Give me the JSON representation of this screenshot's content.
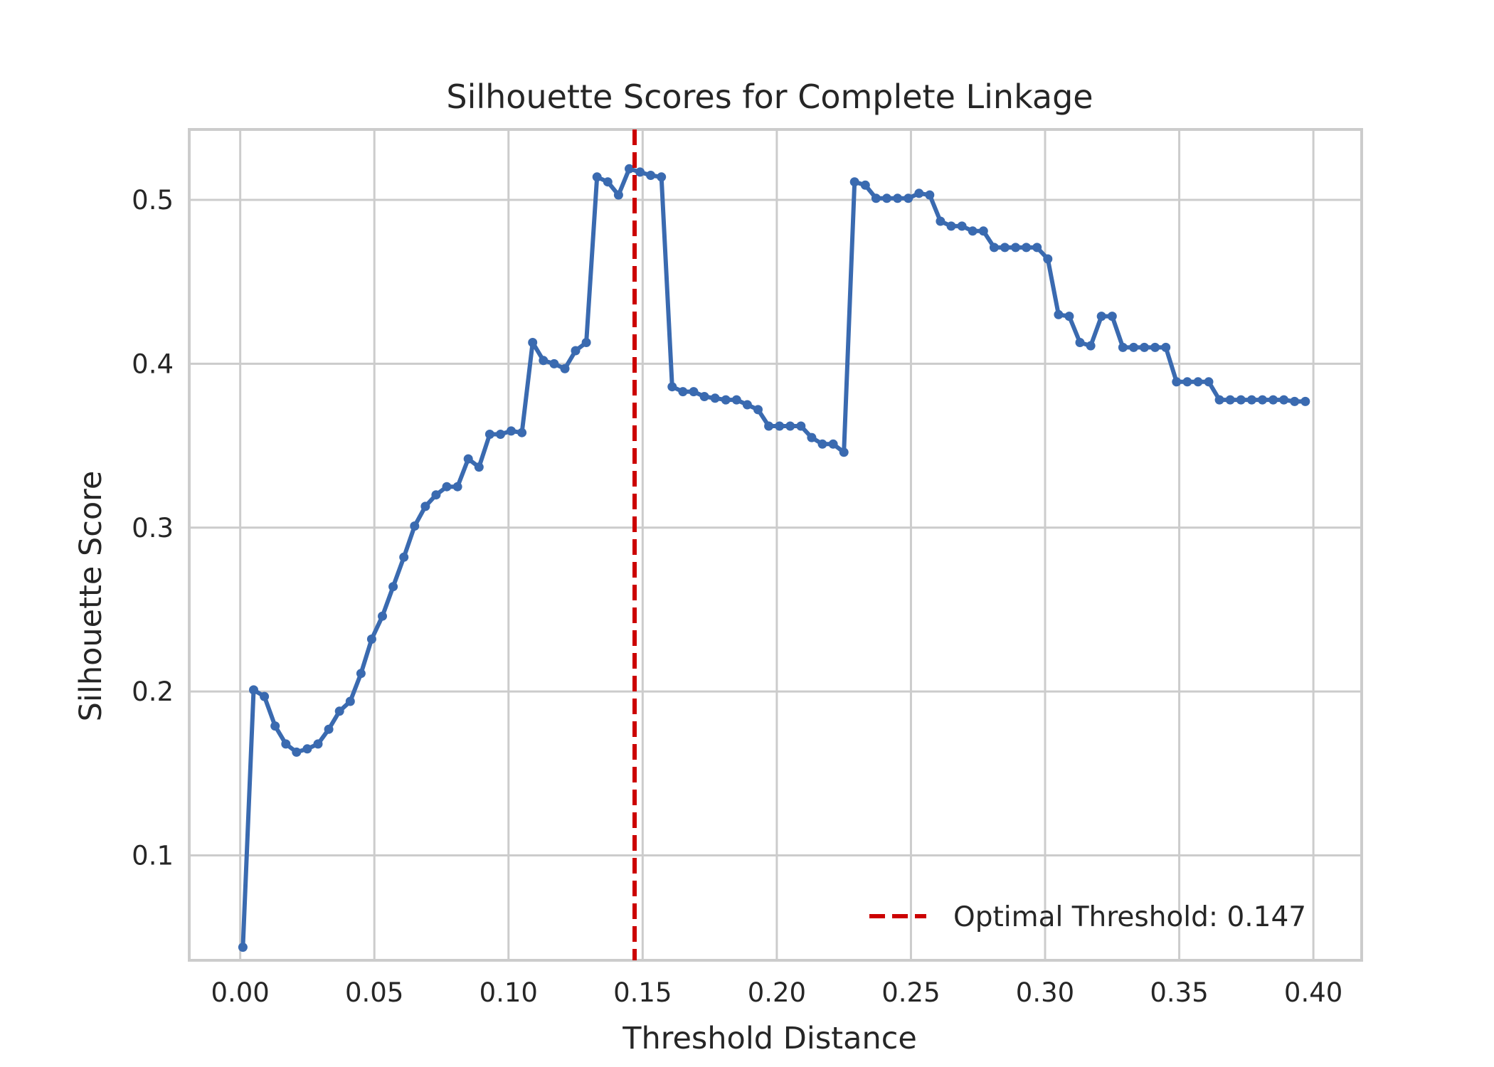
{
  "chart_data": {
    "type": "line",
    "title": "Silhouette Scores for Complete Linkage",
    "xlabel": "Threshold Distance",
    "ylabel": "Silhouette Score",
    "xlim": [
      -0.019,
      0.418
    ],
    "ylim": [
      0.036,
      0.543
    ],
    "xticks": [
      0.0,
      0.05,
      0.1,
      0.15,
      0.2,
      0.25,
      0.3,
      0.35,
      0.4
    ],
    "xtick_labels": [
      "0.00",
      "0.05",
      "0.10",
      "0.15",
      "0.20",
      "0.25",
      "0.30",
      "0.35",
      "0.40"
    ],
    "yticks": [
      0.1,
      0.2,
      0.3,
      0.4,
      0.5
    ],
    "ytick_labels": [
      "0.1",
      "0.2",
      "0.3",
      "0.4",
      "0.5"
    ],
    "grid": true,
    "legend_position": "lower-right",
    "series": [
      {
        "color": "#3a6ab0",
        "marker": "circle",
        "x": [
          0.001,
          0.005,
          0.009,
          0.013,
          0.017,
          0.021,
          0.025,
          0.029,
          0.033,
          0.037,
          0.041,
          0.045,
          0.049,
          0.053,
          0.057,
          0.061,
          0.065,
          0.069,
          0.073,
          0.077,
          0.081,
          0.085,
          0.089,
          0.093,
          0.097,
          0.101,
          0.105,
          0.109,
          0.113,
          0.117,
          0.121,
          0.125,
          0.129,
          0.133,
          0.137,
          0.141,
          0.145,
          0.149,
          0.153,
          0.157,
          0.161,
          0.165,
          0.169,
          0.173,
          0.177,
          0.181,
          0.185,
          0.189,
          0.193,
          0.197,
          0.201,
          0.205,
          0.209,
          0.213,
          0.217,
          0.221,
          0.225,
          0.229,
          0.233,
          0.237,
          0.241,
          0.245,
          0.249,
          0.253,
          0.257,
          0.261,
          0.265,
          0.269,
          0.273,
          0.277,
          0.281,
          0.285,
          0.289,
          0.293,
          0.297,
          0.301,
          0.305,
          0.309,
          0.313,
          0.317,
          0.321,
          0.325,
          0.329,
          0.333,
          0.337,
          0.341,
          0.345,
          0.349,
          0.353,
          0.357,
          0.361,
          0.365,
          0.369,
          0.373,
          0.377,
          0.381,
          0.385,
          0.389,
          0.393,
          0.397
        ],
        "y": [
          0.044,
          0.201,
          0.197,
          0.179,
          0.168,
          0.163,
          0.165,
          0.168,
          0.177,
          0.188,
          0.194,
          0.211,
          0.232,
          0.246,
          0.264,
          0.282,
          0.301,
          0.313,
          0.32,
          0.325,
          0.325,
          0.342,
          0.337,
          0.357,
          0.357,
          0.359,
          0.358,
          0.413,
          0.402,
          0.4,
          0.397,
          0.408,
          0.413,
          0.514,
          0.511,
          0.503,
          0.519,
          0.517,
          0.515,
          0.514,
          0.386,
          0.383,
          0.383,
          0.38,
          0.379,
          0.378,
          0.378,
          0.375,
          0.372,
          0.362,
          0.362,
          0.362,
          0.362,
          0.355,
          0.351,
          0.351,
          0.346,
          0.511,
          0.509,
          0.501,
          0.501,
          0.501,
          0.501,
          0.504,
          0.503,
          0.487,
          0.484,
          0.484,
          0.481,
          0.481,
          0.471,
          0.471,
          0.471,
          0.471,
          0.471,
          0.464,
          0.43,
          0.429,
          0.413,
          0.411,
          0.429,
          0.429,
          0.41,
          0.41,
          0.41,
          0.41,
          0.41,
          0.389,
          0.389,
          0.389,
          0.389,
          0.378,
          0.378,
          0.378,
          0.378,
          0.378,
          0.378,
          0.378,
          0.377,
          0.377
        ]
      }
    ],
    "threshold_line": {
      "x": 0.147,
      "color": "#cc0000",
      "style": "dashed",
      "label": "Optimal Threshold: 0.147"
    }
  }
}
